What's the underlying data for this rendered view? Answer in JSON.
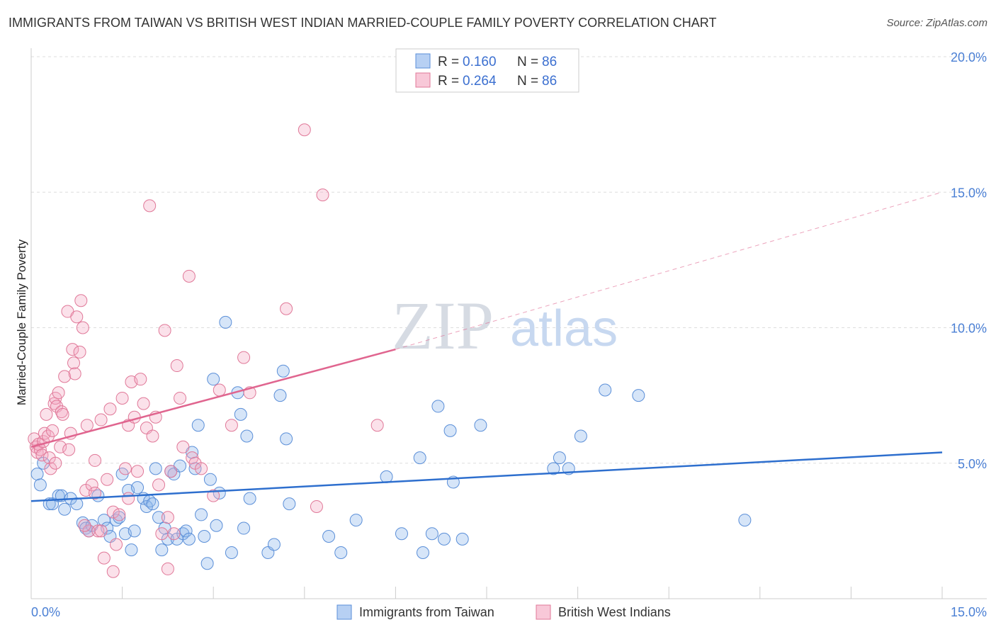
{
  "chart_data": {
    "type": "scatter",
    "title": "IMMIGRANTS FROM TAIWAN VS BRITISH WEST INDIAN MARRIED-COUPLE FAMILY POVERTY CORRELATION CHART",
    "source": "Source: ZipAtlas.com",
    "ylabel": "Married-Couple Family Poverty",
    "xlabel": "",
    "xlim": [
      0,
      15
    ],
    "ylim": [
      0,
      20
    ],
    "x_tick_labels": [
      "0.0%",
      "15.0%"
    ],
    "y_tick_labels": [
      "5.0%",
      "10.0%",
      "15.0%",
      "20.0%"
    ],
    "y_ticks": [
      5,
      10,
      15,
      20
    ],
    "x_ticks": [
      0,
      1.5,
      3,
      4.5,
      6,
      7.5,
      9,
      10.5,
      12,
      13.5,
      15
    ],
    "watermark": {
      "zip": "ZIP",
      "atlas": "atlas"
    },
    "legend": {
      "r_label": "R =",
      "n_label": "N =",
      "entries": [
        {
          "r": "0.160",
          "n": "86"
        },
        {
          "r": "0.264",
          "n": "86"
        }
      ]
    },
    "series": [
      {
        "name": "Immigrants from Taiwan",
        "color": "#8ab4ea",
        "stroke": "#5b8fd8",
        "trend": {
          "x": [
            0,
            15
          ],
          "y": [
            3.6,
            5.4
          ],
          "color": "#2e6fce"
        },
        "points": [
          [
            0.1,
            4.6
          ],
          [
            0.15,
            4.2
          ],
          [
            0.2,
            5.0
          ],
          [
            0.3,
            3.5
          ],
          [
            0.35,
            3.5
          ],
          [
            0.45,
            3.8
          ],
          [
            0.5,
            3.8
          ],
          [
            0.55,
            3.3
          ],
          [
            0.65,
            3.7
          ],
          [
            0.75,
            3.5
          ],
          [
            0.85,
            2.8
          ],
          [
            0.9,
            2.6
          ],
          [
            0.95,
            2.5
          ],
          [
            1.0,
            2.7
          ],
          [
            1.1,
            3.8
          ],
          [
            1.2,
            2.9
          ],
          [
            1.25,
            2.6
          ],
          [
            1.3,
            2.3
          ],
          [
            1.4,
            2.9
          ],
          [
            1.45,
            3.0
          ],
          [
            1.5,
            4.6
          ],
          [
            1.55,
            2.4
          ],
          [
            1.6,
            4.0
          ],
          [
            1.65,
            1.8
          ],
          [
            1.7,
            2.5
          ],
          [
            1.75,
            4.1
          ],
          [
            1.85,
            3.7
          ],
          [
            1.9,
            3.4
          ],
          [
            1.95,
            3.6
          ],
          [
            2.0,
            3.5
          ],
          [
            2.05,
            4.8
          ],
          [
            2.1,
            3.0
          ],
          [
            2.15,
            1.8
          ],
          [
            2.2,
            2.6
          ],
          [
            2.25,
            2.2
          ],
          [
            2.3,
            4.7
          ],
          [
            2.35,
            4.6
          ],
          [
            2.4,
            2.2
          ],
          [
            2.45,
            4.9
          ],
          [
            2.5,
            2.4
          ],
          [
            2.55,
            2.5
          ],
          [
            2.6,
            2.2
          ],
          [
            2.65,
            5.4
          ],
          [
            2.7,
            4.8
          ],
          [
            2.75,
            6.4
          ],
          [
            2.8,
            3.1
          ],
          [
            2.85,
            2.3
          ],
          [
            2.9,
            1.3
          ],
          [
            2.95,
            4.4
          ],
          [
            3.0,
            8.1
          ],
          [
            3.05,
            2.7
          ],
          [
            3.1,
            3.9
          ],
          [
            3.2,
            10.2
          ],
          [
            3.3,
            1.7
          ],
          [
            3.4,
            7.6
          ],
          [
            3.45,
            6.8
          ],
          [
            3.5,
            2.6
          ],
          [
            3.55,
            6.0
          ],
          [
            3.6,
            3.7
          ],
          [
            3.9,
            1.7
          ],
          [
            4.0,
            2.0
          ],
          [
            4.1,
            7.5
          ],
          [
            4.15,
            8.4
          ],
          [
            4.2,
            5.9
          ],
          [
            4.25,
            3.5
          ],
          [
            4.9,
            2.3
          ],
          [
            5.1,
            1.7
          ],
          [
            5.35,
            2.9
          ],
          [
            5.85,
            4.5
          ],
          [
            6.1,
            2.4
          ],
          [
            6.4,
            5.2
          ],
          [
            6.45,
            1.7
          ],
          [
            6.6,
            2.4
          ],
          [
            6.7,
            7.1
          ],
          [
            6.8,
            2.2
          ],
          [
            6.9,
            6.2
          ],
          [
            6.95,
            4.3
          ],
          [
            7.1,
            2.2
          ],
          [
            7.4,
            6.4
          ],
          [
            8.6,
            4.8
          ],
          [
            8.7,
            5.2
          ],
          [
            8.85,
            4.8
          ],
          [
            9.05,
            6.0
          ],
          [
            9.45,
            7.7
          ],
          [
            10.0,
            7.5
          ],
          [
            11.75,
            2.9
          ]
        ]
      },
      {
        "name": "British West Indians",
        "color": "#f3a9c2",
        "stroke": "#e07898",
        "trend": {
          "x": [
            0,
            6.0
          ],
          "y": [
            5.6,
            9.2
          ],
          "color": "#e0658f",
          "dashed_x": [
            6.0,
            15
          ],
          "dashed_y": [
            9.2,
            15.0
          ]
        },
        "points": [
          [
            0.05,
            5.9
          ],
          [
            0.08,
            5.6
          ],
          [
            0.1,
            5.4
          ],
          [
            0.12,
            5.7
          ],
          [
            0.15,
            5.5
          ],
          [
            0.18,
            5.3
          ],
          [
            0.2,
            5.8
          ],
          [
            0.22,
            6.1
          ],
          [
            0.25,
            6.8
          ],
          [
            0.28,
            6.0
          ],
          [
            0.3,
            5.2
          ],
          [
            0.32,
            4.8
          ],
          [
            0.35,
            6.2
          ],
          [
            0.38,
            7.2
          ],
          [
            0.4,
            7.4
          ],
          [
            0.42,
            7.1
          ],
          [
            0.45,
            7.6
          ],
          [
            0.48,
            5.6
          ],
          [
            0.5,
            6.9
          ],
          [
            0.52,
            6.8
          ],
          [
            0.55,
            8.2
          ],
          [
            0.6,
            10.6
          ],
          [
            0.65,
            6.1
          ],
          [
            0.68,
            9.2
          ],
          [
            0.7,
            8.7
          ],
          [
            0.72,
            8.3
          ],
          [
            0.75,
            10.4
          ],
          [
            0.8,
            9.1
          ],
          [
            0.82,
            11.0
          ],
          [
            0.85,
            10.0
          ],
          [
            0.9,
            4.0
          ],
          [
            0.92,
            6.4
          ],
          [
            0.95,
            2.5
          ],
          [
            1.0,
            4.2
          ],
          [
            1.05,
            5.1
          ],
          [
            1.1,
            2.5
          ],
          [
            1.15,
            6.6
          ],
          [
            1.2,
            1.5
          ],
          [
            1.25,
            4.4
          ],
          [
            1.3,
            7.0
          ],
          [
            1.35,
            3.2
          ],
          [
            1.4,
            2.0
          ],
          [
            1.45,
            3.1
          ],
          [
            1.5,
            7.4
          ],
          [
            1.55,
            4.8
          ],
          [
            1.6,
            6.4
          ],
          [
            1.65,
            8.0
          ],
          [
            1.7,
            6.7
          ],
          [
            1.75,
            4.7
          ],
          [
            1.8,
            8.1
          ],
          [
            1.85,
            7.2
          ],
          [
            1.9,
            6.3
          ],
          [
            1.95,
            14.5
          ],
          [
            2.0,
            6.0
          ],
          [
            2.05,
            6.7
          ],
          [
            2.1,
            4.2
          ],
          [
            2.2,
            9.9
          ],
          [
            2.25,
            1.1
          ],
          [
            2.3,
            4.7
          ],
          [
            2.35,
            2.4
          ],
          [
            2.4,
            8.6
          ],
          [
            2.45,
            7.4
          ],
          [
            2.5,
            5.6
          ],
          [
            2.6,
            11.9
          ],
          [
            2.65,
            5.2
          ],
          [
            2.7,
            5.0
          ],
          [
            2.8,
            4.8
          ],
          [
            3.0,
            3.8
          ],
          [
            3.1,
            7.7
          ],
          [
            3.3,
            6.4
          ],
          [
            3.5,
            8.9
          ],
          [
            3.6,
            7.6
          ],
          [
            4.2,
            10.7
          ],
          [
            4.5,
            17.3
          ],
          [
            4.7,
            3.4
          ],
          [
            4.8,
            14.9
          ],
          [
            5.7,
            6.4
          ],
          [
            1.35,
            1.0
          ],
          [
            1.15,
            2.5
          ],
          [
            0.88,
            2.7
          ],
          [
            0.62,
            5.5
          ],
          [
            2.15,
            2.4
          ],
          [
            1.05,
            3.9
          ],
          [
            0.4,
            5.0
          ],
          [
            1.6,
            3.7
          ],
          [
            2.25,
            3.0
          ]
        ]
      }
    ]
  }
}
